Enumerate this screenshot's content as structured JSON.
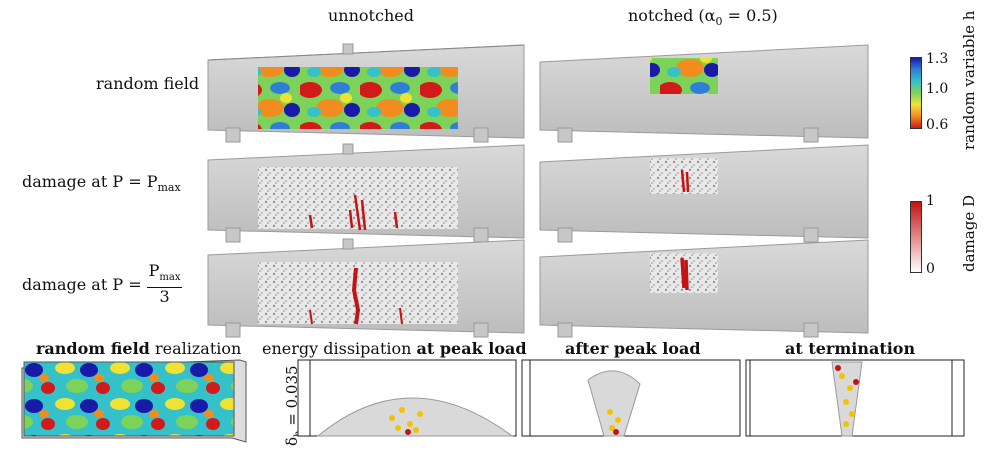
{
  "columns": {
    "unnotched": "unnotched",
    "notched": "notched (α",
    "notched_sub": "0",
    "notched_tail": " = 0.5)"
  },
  "rows": {
    "random_field": "random field",
    "damage_pmax_prefix": "damage at P = P",
    "damage_pmax_sub": "max",
    "damage_p3_prefix": "damage at P =",
    "damage_p3_num": "P",
    "damage_p3_num_sub": "max",
    "damage_p3_den": "3"
  },
  "colorbars": {
    "h": {
      "label": "random variable h",
      "ticks": [
        "1.3",
        "1.0",
        "0.6"
      ],
      "colors": [
        "#1a1aa8",
        "#2f7fd9",
        "#35c1c9",
        "#7dd35a",
        "#f0e233",
        "#f28c1e",
        "#d21a1a"
      ]
    },
    "D": {
      "label": "damage D",
      "ticks": [
        "1",
        "0"
      ],
      "colors": [
        "#c31313",
        "#ffffff"
      ]
    }
  },
  "bottom": {
    "realization": {
      "bold": "random field",
      "rest": " realization"
    },
    "dissipation": {
      "pre": "energy dissipation ",
      "bold": "at peak load"
    },
    "after": {
      "bold": "after peak load"
    },
    "termination": {
      "bold": "at termination"
    },
    "ylabel": "δ",
    "ylabel_sub": "h",
    "ylabel_tail": " = 0.035"
  }
}
